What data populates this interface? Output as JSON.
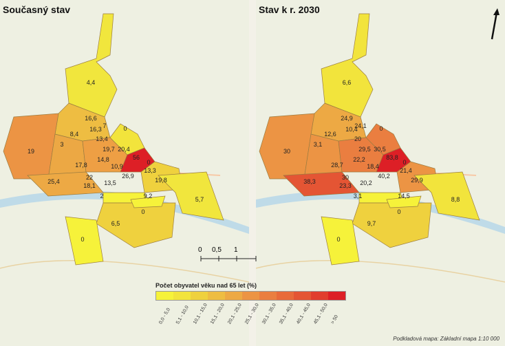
{
  "panels": [
    {
      "title": "Současný stav",
      "values": [
        "4,4",
        "16,6",
        "16,3",
        "7",
        "0",
        "8,4",
        "13,4",
        "3",
        "19",
        "19,7",
        "20,4",
        "56",
        "14,8",
        "17,8",
        "10,9",
        "0",
        "13,3",
        "22",
        "26,9",
        "25,4",
        "18,1",
        "13,5",
        "19,8",
        "2",
        "9,2",
        "5,7",
        "0",
        "6,5",
        "0"
      ]
    },
    {
      "title": "Stav k r. 2030",
      "values": [
        "6,6",
        "24,9",
        "10,4",
        "24,1",
        "0",
        "12,6",
        "20",
        "3,1",
        "30",
        "29,5",
        "30,5",
        "83,8",
        "22,2",
        "28,7",
        "18,4",
        "0",
        "21,4",
        "30",
        "40,2",
        "38,3",
        "23,3",
        "20,2",
        "29,9",
        "3,1",
        "14,5",
        "8,8",
        "0",
        "9,7",
        "0"
      ]
    }
  ],
  "scale": {
    "labels": [
      "0",
      "0,5",
      "1"
    ]
  },
  "legend": {
    "title": "Počet obyvatel věku nad 65 let (%)",
    "classes": [
      "0,0 - 5,0",
      "5,1 - 10,0",
      "10,1 - 15,0",
      "15,1 - 20,0",
      "20,1 - 25,0",
      "25,1 - 30,0",
      "30,1 - 35,0",
      "35,1 - 40,0",
      "40,1 - 45,0",
      "45,1 - 50,0",
      "> 50"
    ],
    "colors": [
      "#f6f23a",
      "#f2e43c",
      "#efd13e",
      "#eebd42",
      "#eda944",
      "#ec9444",
      "#ea7e40",
      "#e86a3a",
      "#e45534",
      "#e13d2e",
      "#dd1f26"
    ]
  },
  "source": "Podkladová mapa: Základní mapa 1:10 000",
  "icons": {
    "north": "north-arrow-icon"
  }
}
